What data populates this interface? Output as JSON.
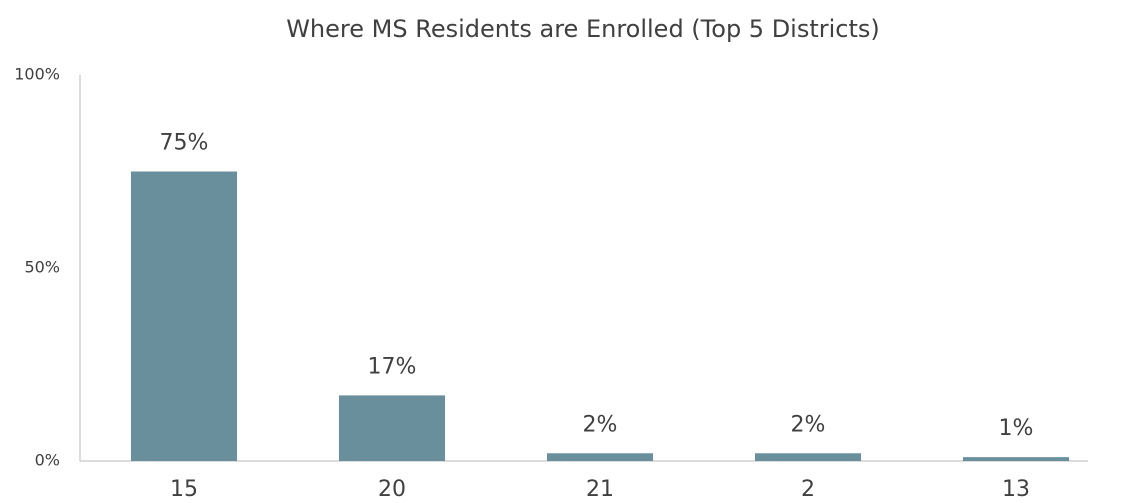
{
  "chart_data": {
    "type": "bar",
    "title": "Where MS Residents are Enrolled (Top 5 Districts)",
    "categories": [
      "15",
      "20",
      "21",
      "2",
      "13"
    ],
    "values": [
      75,
      17,
      2,
      2,
      1
    ],
    "value_labels": [
      "75%",
      "17%",
      "2%",
      "2%",
      "1%"
    ],
    "color": "#6a8f9c",
    "ylim": [
      0,
      100
    ],
    "yticks": [
      {
        "value": 0,
        "label": "0%"
      },
      {
        "value": 50,
        "label": "50%"
      },
      {
        "value": 100,
        "label": "100%"
      }
    ],
    "grid": false
  }
}
